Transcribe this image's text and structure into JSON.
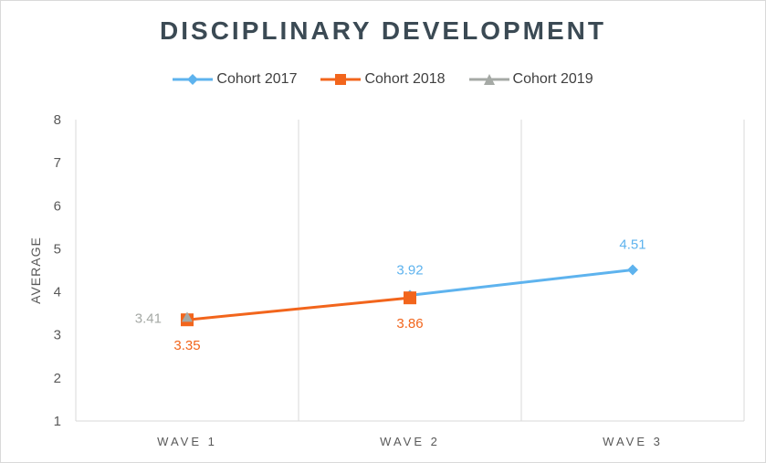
{
  "chart_data": {
    "type": "line",
    "title": "DISCIPLINARY DEVELOPMENT",
    "xlabel": "",
    "ylabel": "AVERAGE",
    "categories": [
      "WAVE 1",
      "WAVE 2",
      "WAVE 3"
    ],
    "ylim": [
      1,
      8
    ],
    "yticks": [
      1,
      2,
      3,
      4,
      5,
      6,
      7,
      8
    ],
    "grid": "vertical",
    "legend_position": "top",
    "series": [
      {
        "name": "Cohort 2017",
        "color": "#5eb3ee",
        "marker": "diamond",
        "values": [
          null,
          3.92,
          4.51
        ],
        "labels": [
          "",
          "3.92",
          "4.51"
        ],
        "label_positions": [
          "",
          "above",
          "above"
        ]
      },
      {
        "name": "Cohort 2018",
        "color": "#f2651c",
        "marker": "square",
        "values": [
          3.35,
          3.86,
          null
        ],
        "labels": [
          "3.35",
          "3.86",
          ""
        ],
        "label_positions": [
          "below",
          "below",
          ""
        ]
      },
      {
        "name": "Cohort 2019",
        "color": "#a5a9a5",
        "marker": "triangle",
        "values": [
          3.41,
          null,
          null
        ],
        "labels": [
          "3.41",
          "",
          ""
        ],
        "label_positions": [
          "left",
          "",
          ""
        ]
      }
    ]
  }
}
